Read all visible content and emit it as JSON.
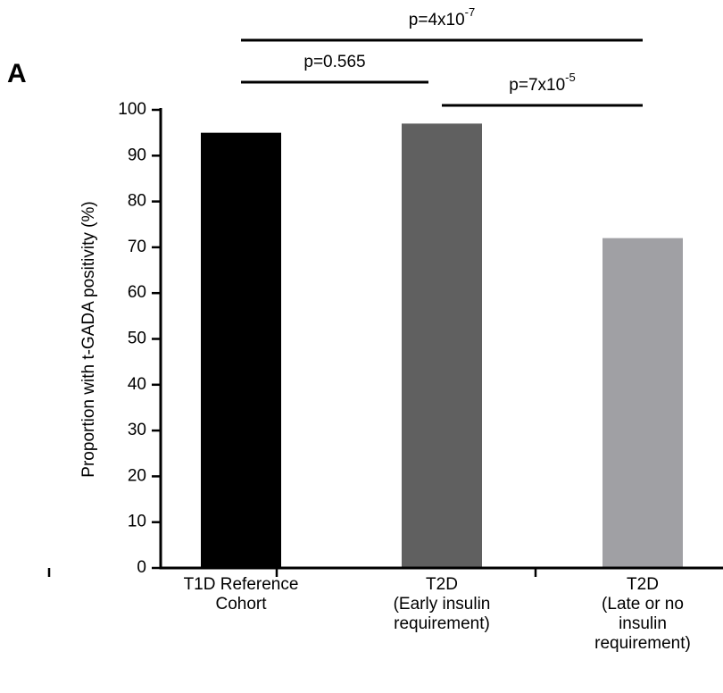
{
  "chart_data": {
    "type": "bar",
    "panel_label": "A",
    "y_label": "Proportion with t-GADA positivity (%)",
    "categories": [
      [
        "T1D Reference",
        "Cohort"
      ],
      [
        "T2D",
        "(Early insulin",
        "requirement)"
      ],
      [
        "T2D",
        "(Late or no",
        "insulin",
        "requirement)"
      ]
    ],
    "values": [
      95,
      97,
      72
    ],
    "colors": [
      "#000000",
      "#606060",
      "#a0a0a4"
    ],
    "ylim": [
      0,
      100
    ],
    "yticks": [
      0,
      10,
      20,
      30,
      40,
      50,
      60,
      70,
      80,
      90,
      100
    ],
    "grid": false,
    "annotations": [
      {
        "text": "p=4x10",
        "sup": "-7"
      },
      {
        "text": "p=0.565"
      },
      {
        "text": "p=7x10",
        "sup": "-5"
      }
    ]
  }
}
